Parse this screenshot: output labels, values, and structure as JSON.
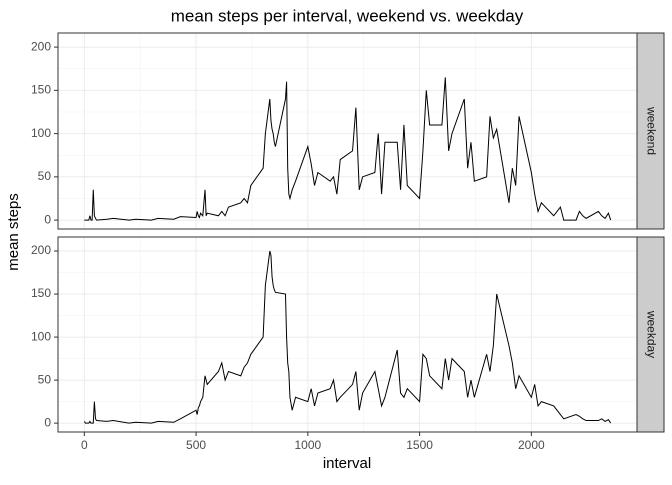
{
  "chart_data": {
    "type": "line",
    "title": "mean steps per interval, weekend vs. weekday",
    "x_label": "interval",
    "y_label": "mean steps",
    "facet": true,
    "grid": true,
    "x": [
      0,
      5,
      10,
      15,
      20,
      25,
      30,
      35,
      40,
      45,
      50,
      55,
      100,
      130,
      200,
      230,
      300,
      330,
      400,
      430,
      500,
      505,
      510,
      515,
      520,
      530,
      540,
      545,
      550,
      600,
      615,
      630,
      645,
      700,
      715,
      730,
      745,
      800,
      810,
      820,
      830,
      835,
      840,
      845,
      850,
      855,
      900,
      905,
      910,
      915,
      920,
      930,
      945,
      1000,
      1015,
      1030,
      1045,
      1100,
      1115,
      1130,
      1145,
      1200,
      1215,
      1230,
      1245,
      1300,
      1315,
      1330,
      1345,
      1400,
      1415,
      1430,
      1445,
      1500,
      1515,
      1530,
      1545,
      1600,
      1615,
      1630,
      1645,
      1700,
      1715,
      1730,
      1745,
      1800,
      1815,
      1830,
      1845,
      1900,
      1915,
      1930,
      1945,
      2000,
      2015,
      2030,
      2045,
      2100,
      2115,
      2130,
      2145,
      2200,
      2215,
      2230,
      2245,
      2300,
      2315,
      2330,
      2345,
      2355
    ],
    "xlim": [
      -117.75,
      2472.75
    ],
    "xticks": [
      0,
      500,
      1000,
      1500,
      2000
    ],
    "ylim": [
      -10.3,
      216.3
    ],
    "yticks": [
      0,
      50,
      100,
      150,
      200
    ],
    "series": [
      {
        "name": "weekend",
        "color": "#000000",
        "values": [
          0,
          0,
          0,
          0,
          0,
          5,
          0,
          0,
          35,
          5,
          2,
          0,
          1,
          2,
          0,
          1,
          0,
          2,
          1,
          4,
          3,
          10,
          5,
          3,
          8,
          5,
          35,
          5,
          8,
          5,
          10,
          5,
          15,
          20,
          25,
          20,
          40,
          60,
          100,
          120,
          140,
          115,
          105,
          100,
          90,
          85,
          140,
          160,
          60,
          30,
          25,
          35,
          45,
          85,
          65,
          40,
          55,
          45,
          50,
          30,
          70,
          80,
          130,
          35,
          50,
          55,
          100,
          30,
          90,
          90,
          35,
          110,
          40,
          25,
          80,
          150,
          110,
          110,
          165,
          80,
          100,
          140,
          60,
          90,
          45,
          50,
          120,
          95,
          105,
          20,
          60,
          40,
          120,
          55,
          30,
          10,
          20,
          5,
          10,
          15,
          0,
          0,
          10,
          5,
          2,
          10,
          5,
          2,
          8,
          0
        ]
      },
      {
        "name": "weekday",
        "color": "#000000",
        "values": [
          2,
          0,
          0,
          0,
          0,
          2,
          0,
          0,
          0,
          25,
          5,
          3,
          2,
          3,
          0,
          1,
          0,
          2,
          1,
          5,
          15,
          10,
          18,
          20,
          25,
          30,
          55,
          50,
          45,
          60,
          70,
          50,
          60,
          55,
          65,
          70,
          80,
          100,
          160,
          180,
          200,
          195,
          170,
          160,
          155,
          152,
          150,
          100,
          70,
          60,
          30,
          15,
          30,
          25,
          40,
          20,
          35,
          40,
          50,
          25,
          30,
          45,
          60,
          15,
          35,
          60,
          40,
          20,
          30,
          85,
          35,
          30,
          40,
          25,
          80,
          75,
          55,
          40,
          75,
          50,
          75,
          60,
          30,
          50,
          30,
          80,
          60,
          90,
          150,
          90,
          70,
          40,
          55,
          30,
          45,
          20,
          25,
          20,
          15,
          10,
          5,
          10,
          8,
          5,
          3,
          3,
          5,
          2,
          4,
          0
        ]
      }
    ]
  }
}
